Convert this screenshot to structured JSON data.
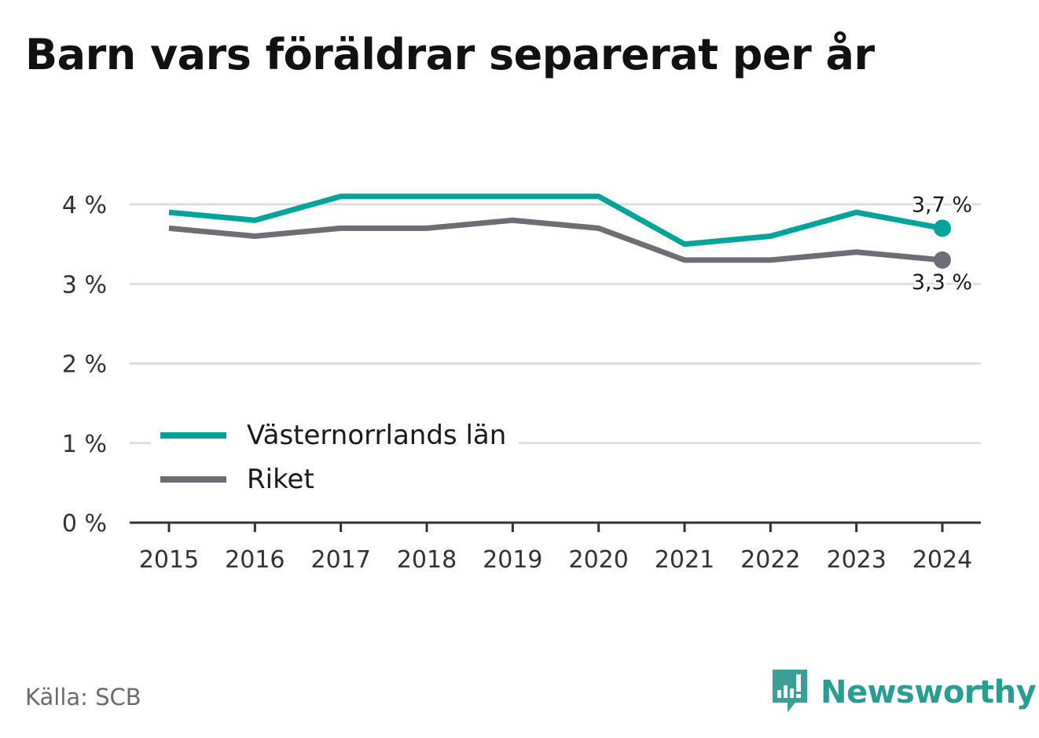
{
  "title": "Barn vars föräldrar separerat per år",
  "source": "Källa: SCB",
  "brand": {
    "name": "Newsworthy",
    "icon": "newsworthy-logo-icon",
    "color": "#2a9d93"
  },
  "chart_data": {
    "type": "line",
    "title": "Barn vars föräldrar separerat per år",
    "xlabel": "",
    "ylabel": "",
    "x": [
      2015,
      2016,
      2017,
      2018,
      2019,
      2020,
      2021,
      2022,
      2023,
      2024
    ],
    "ylim": [
      0,
      4
    ],
    "y_ticks": [
      "0 %",
      "1 %",
      "2 %",
      "3 %",
      "4 %"
    ],
    "grid": true,
    "legend_position": "bottom-left",
    "series": [
      {
        "name": "Västernorrlands län",
        "color": "#00a39a",
        "values": [
          3.9,
          3.8,
          4.1,
          4.1,
          4.1,
          4.1,
          3.5,
          3.6,
          3.9,
          3.7
        ],
        "end_label": "3,7 %"
      },
      {
        "name": "Riket",
        "color": "#6e6d74",
        "values": [
          3.7,
          3.6,
          3.7,
          3.7,
          3.8,
          3.7,
          3.3,
          3.3,
          3.4,
          3.3
        ],
        "end_label": "3,3 %"
      }
    ]
  }
}
